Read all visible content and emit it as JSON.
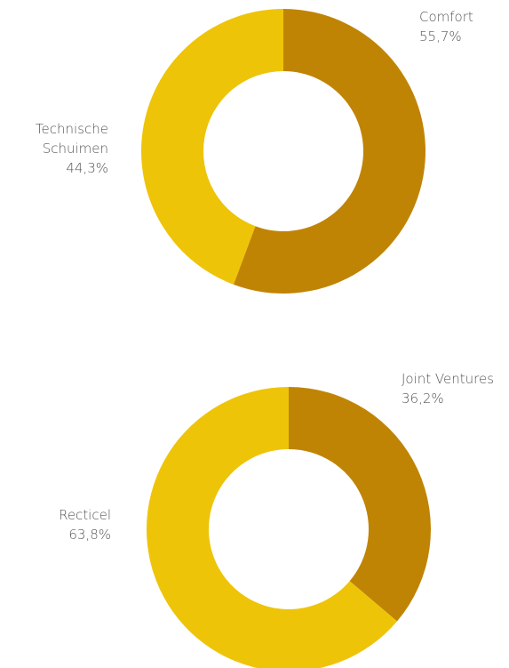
{
  "chart_data": [
    {
      "type": "donut",
      "categories": [
        "Comfort",
        "Technische Schuimen"
      ],
      "values": [
        55.7,
        44.3
      ],
      "value_labels": [
        "55,7%",
        "44,3%"
      ],
      "colors": [
        "#c08405",
        "#eec408"
      ]
    },
    {
      "type": "donut",
      "categories": [
        "Joint Ventures",
        "Recticel"
      ],
      "values": [
        36.2,
        63.8
      ],
      "value_labels": [
        "36,2%",
        "63,8%"
      ],
      "colors": [
        "#c08405",
        "#eec408"
      ]
    }
  ]
}
